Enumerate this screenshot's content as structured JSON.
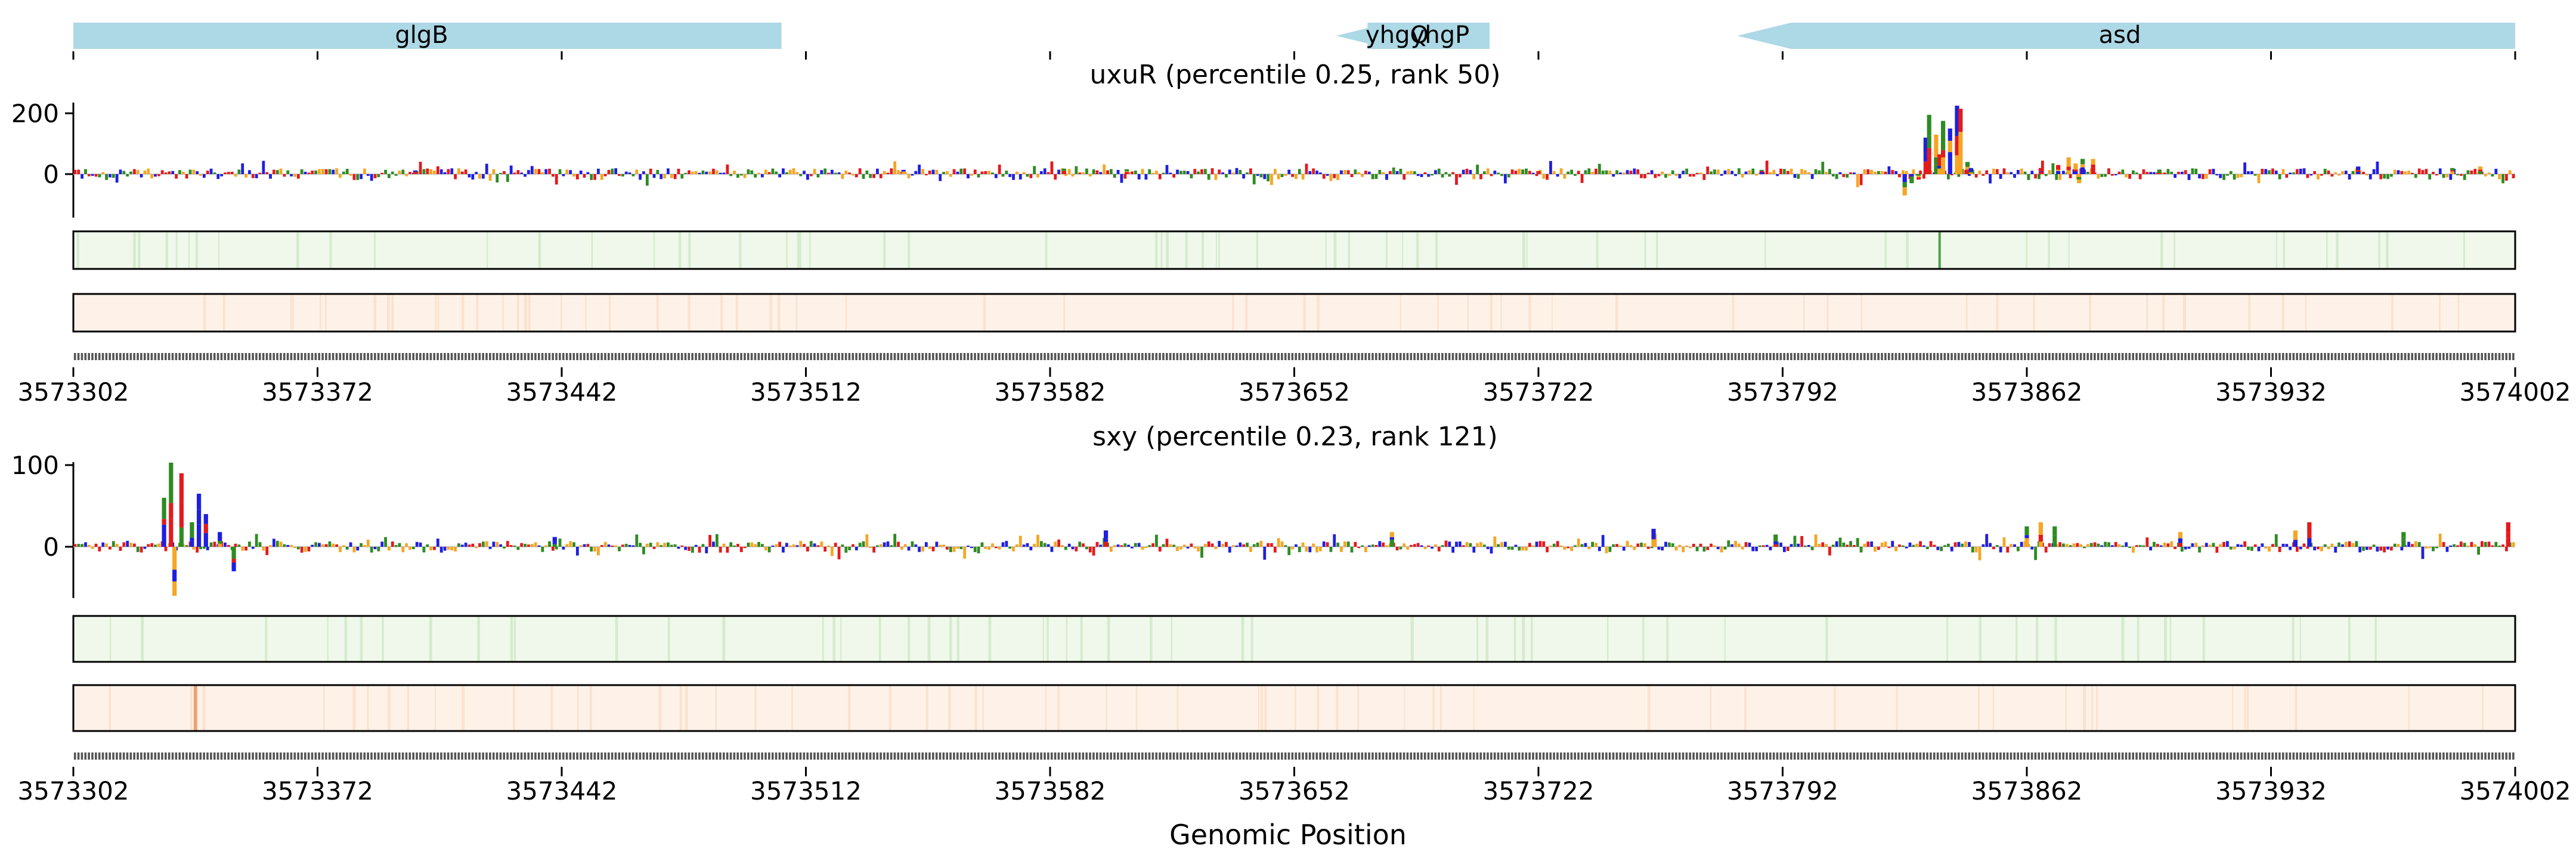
{
  "chart_data": {
    "type": "genome-track-logo",
    "xlabel": "Genomic Position",
    "xlim": [
      3573302,
      3574002
    ],
    "x_ticks": [
      "3573302",
      "3573372",
      "3573442",
      "3573512",
      "3573582",
      "3573652",
      "3573722",
      "3573792",
      "3573862",
      "3573932",
      "3574002"
    ],
    "genes": [
      {
        "name": "glgB",
        "start": 3573302,
        "end": 3573505,
        "strand": "+"
      },
      {
        "name": "yhgQ",
        "start": 3573664,
        "end": 3573673,
        "strand": "-"
      },
      {
        "name": "yhgP",
        "start": 3573673,
        "end": 3573708,
        "strand": "+"
      },
      {
        "name": "asd",
        "start": 3573779,
        "end": 3574002,
        "strand": "-"
      }
    ],
    "panels": [
      {
        "title": "uxuR (percentile 0.25, rank 50)",
        "y_ticks": [
          200,
          0
        ],
        "ylim": [
          -75,
          240
        ],
        "peaks": [
          {
            "x": 3573827,
            "value": -70
          },
          {
            "x": 3573829,
            "value": -30
          },
          {
            "x": 3573831,
            "value": -18
          },
          {
            "x": 3573833,
            "value": 120
          },
          {
            "x": 3573834,
            "value": 195
          },
          {
            "x": 3573836,
            "value": 130
          },
          {
            "x": 3573837,
            "value": 65
          },
          {
            "x": 3573838,
            "value": 175
          },
          {
            "x": 3573840,
            "value": 150
          },
          {
            "x": 3573842,
            "value": 225
          },
          {
            "x": 3573843,
            "value": 215
          },
          {
            "x": 3573845,
            "value": 40
          },
          {
            "x": 3573846,
            "value": 20
          },
          {
            "x": 3573866,
            "value": 20
          },
          {
            "x": 3573871,
            "value": 30
          },
          {
            "x": 3573874,
            "value": 55
          },
          {
            "x": 3573876,
            "value": 35
          },
          {
            "x": 3573878,
            "value": 50
          },
          {
            "x": 3573881,
            "value": 50
          },
          {
            "x": 3573877,
            "value": -30
          },
          {
            "x": 3573957,
            "value": 25
          },
          {
            "x": 3573984,
            "value": 20
          },
          {
            "x": 3573992,
            "value": 25
          },
          {
            "x": 3573400,
            "value": 12
          },
          {
            "x": 3573540,
            "value": 14
          },
          {
            "x": 3573586,
            "value": 18
          },
          {
            "x": 3573604,
            "value": 16
          },
          {
            "x": 3573722,
            "value": 10
          },
          {
            "x": 3573786,
            "value": 14
          },
          {
            "x": 3573900,
            "value": 15
          }
        ]
      },
      {
        "title": "sxy (percentile 0.23, rank 121)",
        "y_ticks": [
          100,
          0
        ],
        "ylim": [
          -70,
          110
        ],
        "peaks": [
          {
            "x": 3573328,
            "value": 60
          },
          {
            "x": 3573330,
            "value": 103
          },
          {
            "x": 3573331,
            "value": -60
          },
          {
            "x": 3573333,
            "value": 90
          },
          {
            "x": 3573336,
            "value": 30
          },
          {
            "x": 3573338,
            "value": 65
          },
          {
            "x": 3573340,
            "value": 40
          },
          {
            "x": 3573344,
            "value": 18
          },
          {
            "x": 3573348,
            "value": -30
          },
          {
            "x": 3573440,
            "value": 12
          },
          {
            "x": 3573598,
            "value": 20
          },
          {
            "x": 3573680,
            "value": 18
          },
          {
            "x": 3573755,
            "value": 22
          },
          {
            "x": 3573790,
            "value": 15
          },
          {
            "x": 3573862,
            "value": 25
          },
          {
            "x": 3573866,
            "value": 30
          },
          {
            "x": 3573870,
            "value": 25
          },
          {
            "x": 3573906,
            "value": 18
          },
          {
            "x": 3573939,
            "value": 20
          },
          {
            "x": 3573943,
            "value": 30
          },
          {
            "x": 3573970,
            "value": 18
          },
          {
            "x": 3574000,
            "value": 30
          }
        ]
      }
    ]
  },
  "colors": {
    "gene": "#add8e6",
    "track_green": "#f0f8ec",
    "track_orange": "#fef2e8",
    "base_A": "#2e8b22",
    "base_C": "#1f1fe0",
    "base_G": "#f5a623",
    "base_T": "#e31a1c"
  }
}
